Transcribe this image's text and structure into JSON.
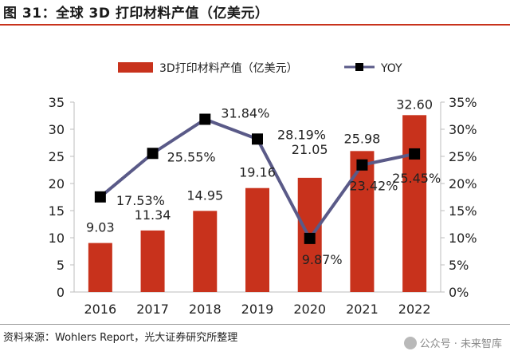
{
  "header": {
    "title": "图 31：全球 3D 打印材料产值（亿美元）"
  },
  "footer": {
    "source": "资料来源：Wohlers Report，光大证券研究所整理",
    "watermark": "公众号 · 未来智库"
  },
  "chart_data": {
    "type": "bar",
    "categories": [
      "2016",
      "2017",
      "2018",
      "2019",
      "2020",
      "2021",
      "2022"
    ],
    "series": [
      {
        "name": "3D打印材料产值（亿美元）",
        "type": "bar",
        "axis": "left",
        "values": [
          9.03,
          11.34,
          14.95,
          19.16,
          21.05,
          25.98,
          32.6
        ],
        "labels": [
          "9.03",
          "11.34",
          "14.95",
          "19.16",
          "21.05",
          "25.98",
          "32.60"
        ],
        "color": "#c8321c"
      },
      {
        "name": "YOY",
        "type": "line",
        "axis": "right",
        "values": [
          17.53,
          25.55,
          31.84,
          28.19,
          9.87,
          23.42,
          25.45
        ],
        "labels": [
          "17.53%",
          "25.55%",
          "31.84%",
          "28.19%",
          "9.87%",
          "23.42%",
          "25.45%"
        ],
        "color": "#5a5a88",
        "marker_color": "#000000"
      }
    ],
    "y_left": {
      "min": 0,
      "max": 35,
      "ticks": [
        "0",
        "5",
        "10",
        "15",
        "20",
        "25",
        "30",
        "35"
      ]
    },
    "y_right": {
      "min": 0,
      "max": 35,
      "ticks": [
        "0%",
        "5%",
        "10%",
        "15%",
        "20%",
        "25%",
        "30%",
        "35%"
      ]
    },
    "legend_position": "top",
    "grid": false
  }
}
